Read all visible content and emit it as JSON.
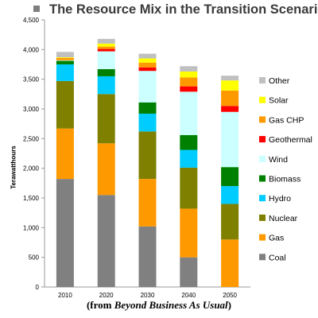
{
  "chart_data": {
    "type": "bar",
    "stacked": true,
    "title": "The Resource Mix in the Transition Scenario",
    "ylabel": "Terawatthours",
    "xlabel": "",
    "ylim": [
      0,
      4500
    ],
    "yticks": [
      "0",
      "500",
      "1,000",
      "1,500",
      "2,000",
      "2,500",
      "3,000",
      "3,500",
      "4,000",
      "4,500"
    ],
    "categories": [
      "2010",
      "2020",
      "2030",
      "2040",
      "2050"
    ],
    "legend_position": "right",
    "grid": false,
    "series": [
      {
        "name": "Coal",
        "color": "#808080",
        "values": [
          1820,
          1550,
          1020,
          500,
          0
        ]
      },
      {
        "name": "Gas",
        "color": "#ff9900",
        "values": [
          850,
          870,
          800,
          820,
          800
        ]
      },
      {
        "name": "Nuclear",
        "color": "#808000",
        "values": [
          800,
          830,
          800,
          690,
          600
        ]
      },
      {
        "name": "Hydro",
        "color": "#00ccff",
        "values": [
          280,
          300,
          300,
          300,
          300
        ]
      },
      {
        "name": "Biomass",
        "color": "#008000",
        "values": [
          60,
          120,
          190,
          250,
          320
        ]
      },
      {
        "name": "Wind",
        "color": "#ccffff",
        "values": [
          10,
          300,
          530,
          730,
          930
        ]
      },
      {
        "name": "Geothermal",
        "color": "#ff0000",
        "values": [
          0,
          40,
          60,
          90,
          100
        ]
      },
      {
        "name": "Gas CHP",
        "color": "#ff9900",
        "values": [
          40,
          40,
          80,
          150,
          260
        ]
      },
      {
        "name": "Solar",
        "color": "#ffff00",
        "values": [
          10,
          50,
          70,
          100,
          170
        ]
      },
      {
        "name": "Other",
        "color": "#c0c0c0",
        "values": [
          90,
          80,
          80,
          90,
          80
        ]
      }
    ],
    "legend_order": [
      "Other",
      "Solar",
      "Gas CHP",
      "Geothermal",
      "Wind",
      "Biomass",
      "Hydro",
      "Nuclear",
      "Gas",
      "Coal"
    ]
  },
  "caption": {
    "prefix": "(from ",
    "italic": "Beyond Business As Usual",
    "suffix": ")"
  }
}
